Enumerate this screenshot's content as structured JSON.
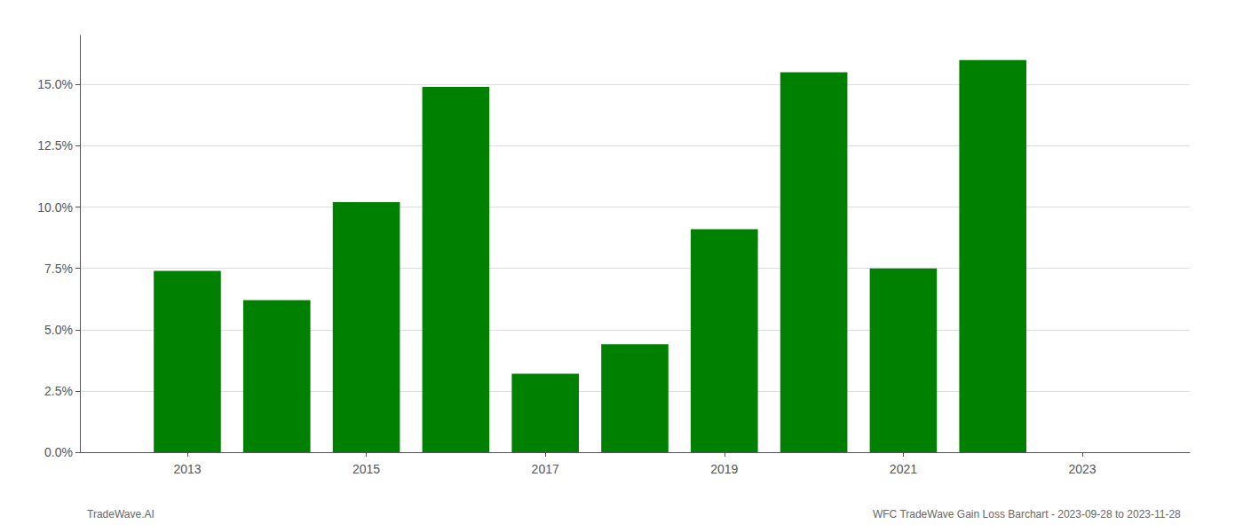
{
  "chart_data": {
    "type": "bar",
    "x": [
      2013,
      2014,
      2015,
      2016,
      2017,
      2018,
      2019,
      2020,
      2021,
      2022,
      2023
    ],
    "values": [
      0.074,
      0.062,
      0.102,
      0.149,
      0.032,
      0.044,
      0.091,
      0.155,
      0.075,
      0.16,
      null
    ],
    "color": "#008000",
    "xlim": [
      2011.8,
      2024.2
    ],
    "xticks": [
      2013,
      2015,
      2017,
      2019,
      2021,
      2023
    ],
    "ylim": [
      0,
      0.17
    ],
    "yticks": [
      {
        "value": 0.0,
        "label": "0.0%"
      },
      {
        "value": 0.025,
        "label": "2.5%"
      },
      {
        "value": 0.05,
        "label": "5.0%"
      },
      {
        "value": 0.075,
        "label": "7.5%"
      },
      {
        "value": 0.1,
        "label": "10.0%"
      },
      {
        "value": 0.125,
        "label": "12.5%"
      },
      {
        "value": 0.15,
        "label": "15.0%"
      }
    ],
    "grid": true,
    "annotations": [
      "TradeWave.AI",
      "WFC TradeWave Gain Loss Barchart - 2023-09-28 to 2023-11-28"
    ]
  }
}
